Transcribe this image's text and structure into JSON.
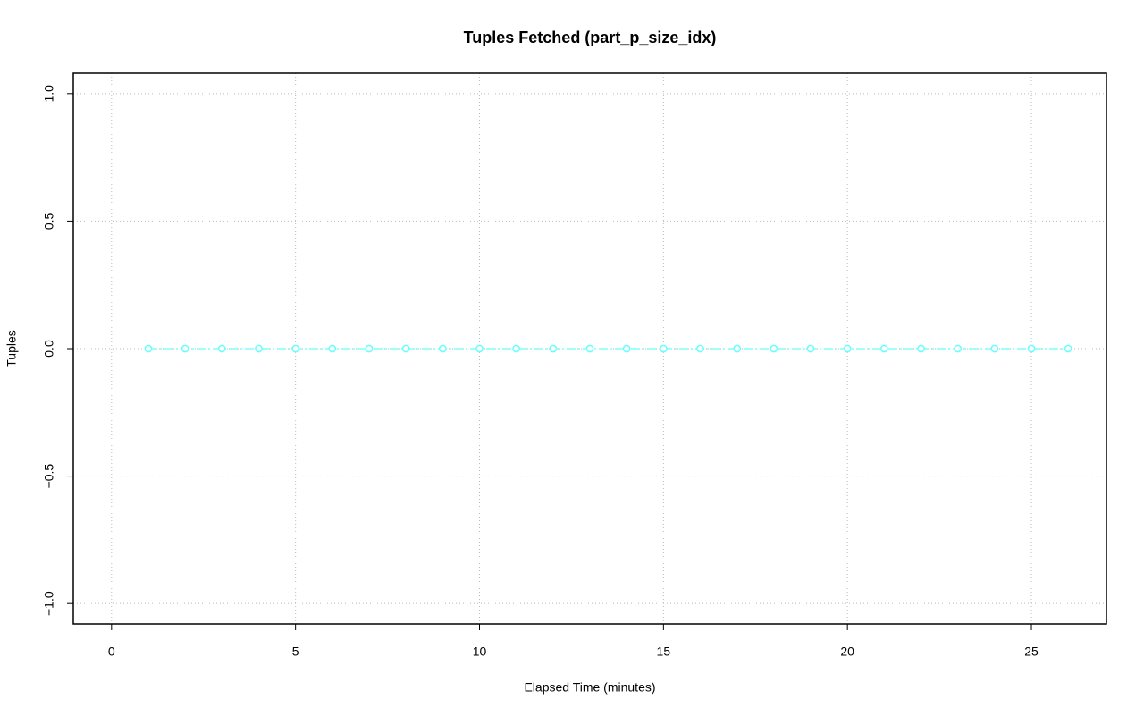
{
  "chart_data": {
    "type": "line",
    "title": "Tuples Fetched (part_p_size_idx)",
    "x_label": "Elapsed Time (minutes)",
    "y_label": "Tuples",
    "x": [
      1,
      2,
      3,
      4,
      5,
      6,
      7,
      8,
      9,
      10,
      11,
      12,
      13,
      14,
      15,
      16,
      17,
      18,
      19,
      20,
      21,
      22,
      23,
      24,
      25,
      26
    ],
    "series": [
      {
        "name": "part_p_size_idx",
        "color": "#66ffff",
        "values": [
          0,
          0,
          0,
          0,
          0,
          0,
          0,
          0,
          0,
          0,
          0,
          0,
          0,
          0,
          0,
          0,
          0,
          0,
          0,
          0,
          0,
          0,
          0,
          0,
          0,
          0
        ]
      }
    ],
    "xlim": [
      -1.04,
      27.04
    ],
    "xticks": [
      0,
      5,
      10,
      15,
      20,
      25
    ],
    "ylim": [
      -1.08,
      1.08
    ],
    "yticks": [
      {
        "value": -1,
        "label": "−1.0"
      },
      {
        "value": -0.5,
        "label": "−0.5"
      },
      {
        "value": 0,
        "label": "0.0"
      },
      {
        "value": 0.5,
        "label": "0.5"
      },
      {
        "value": 1,
        "label": "1.0"
      }
    ],
    "grid": true
  }
}
